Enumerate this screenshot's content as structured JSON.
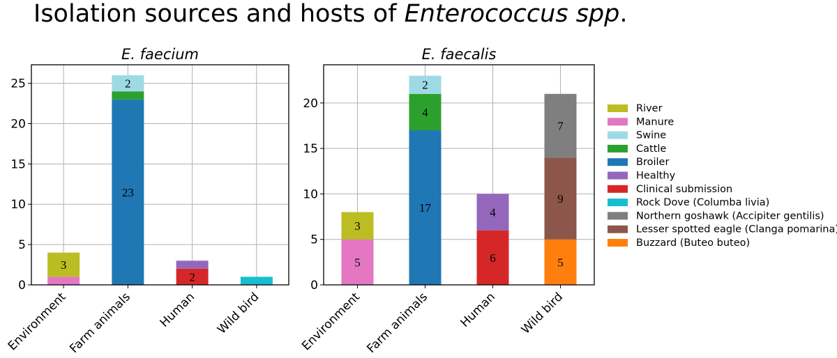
{
  "title": {
    "prefix": "Isolation sources and hosts of ",
    "italic": "Enterococcus  spp",
    "suffix": "."
  },
  "colors": {
    "River": "#bcbd22",
    "Manure": "#e377c2",
    "Swine": "#9edae5",
    "Cattle": "#2ca02c",
    "Broiler": "#1f77b4",
    "Healthy": "#9467bd",
    "Clinical submission": "#d62728",
    "Rock Dove (Columba livia)": "#17becf",
    "Northern goshawk (Accipiter gentilis)": "#7f7f7f",
    "Lesser spotted eagle (Clanga pomarina)": "#8c564b",
    "Buzzard (Buteo buteo)": "#ff7f0e"
  },
  "legend": {
    "placement": "right",
    "entries": [
      "River",
      "Manure",
      "Swine",
      "Cattle",
      "Broiler",
      "Healthy",
      "Clinical submission",
      "Rock Dove (Columba livia)",
      "Northern goshawk (Accipiter gentilis)",
      "Lesser spotted eagle (Clanga pomarina)",
      "Buzzard (Buteo buteo)"
    ]
  },
  "chart_data": [
    {
      "type": "bar",
      "stacked": true,
      "title": "E. faecium",
      "categories": [
        "Environment",
        "Farm animals",
        "Human",
        "Wild bird"
      ],
      "ylim": [
        0,
        27.3
      ],
      "yticks": [
        0,
        5,
        10,
        15,
        20,
        25
      ],
      "grid": true,
      "series": [
        {
          "name": "Manure",
          "values": [
            1,
            0,
            0,
            0
          ]
        },
        {
          "name": "River",
          "values": [
            3,
            0,
            0,
            0
          ]
        },
        {
          "name": "Broiler",
          "values": [
            0,
            23,
            0,
            0
          ]
        },
        {
          "name": "Cattle",
          "values": [
            0,
            1,
            0,
            0
          ]
        },
        {
          "name": "Swine",
          "values": [
            0,
            2,
            0,
            0
          ]
        },
        {
          "name": "Clinical submission",
          "values": [
            0,
            0,
            2,
            0
          ]
        },
        {
          "name": "Healthy",
          "values": [
            0,
            0,
            1,
            0
          ]
        },
        {
          "name": "Rock Dove (Columba livia)",
          "values": [
            0,
            0,
            0,
            1
          ]
        }
      ],
      "data_labels_min": 2
    },
    {
      "type": "bar",
      "stacked": true,
      "title": "E. faecalis",
      "categories": [
        "Environment",
        "Farm animals",
        "Human",
        "Wild bird"
      ],
      "ylim": [
        0,
        24.2
      ],
      "yticks": [
        0,
        5,
        10,
        15,
        20
      ],
      "grid": true,
      "series": [
        {
          "name": "Manure",
          "values": [
            5,
            0,
            0,
            0
          ]
        },
        {
          "name": "River",
          "values": [
            3,
            0,
            0,
            0
          ]
        },
        {
          "name": "Broiler",
          "values": [
            0,
            17,
            0,
            0
          ]
        },
        {
          "name": "Cattle",
          "values": [
            0,
            4,
            0,
            0
          ]
        },
        {
          "name": "Swine",
          "values": [
            0,
            2,
            0,
            0
          ]
        },
        {
          "name": "Clinical submission",
          "values": [
            0,
            0,
            6,
            0
          ]
        },
        {
          "name": "Healthy",
          "values": [
            0,
            0,
            4,
            0
          ]
        },
        {
          "name": "Buzzard (Buteo buteo)",
          "values": [
            0,
            0,
            0,
            5
          ]
        },
        {
          "name": "Lesser spotted eagle (Clanga pomarina)",
          "values": [
            0,
            0,
            0,
            9
          ]
        },
        {
          "name": "Northern goshawk (Accipiter gentilis)",
          "values": [
            0,
            0,
            0,
            7
          ]
        }
      ],
      "data_labels_min": 2
    }
  ]
}
